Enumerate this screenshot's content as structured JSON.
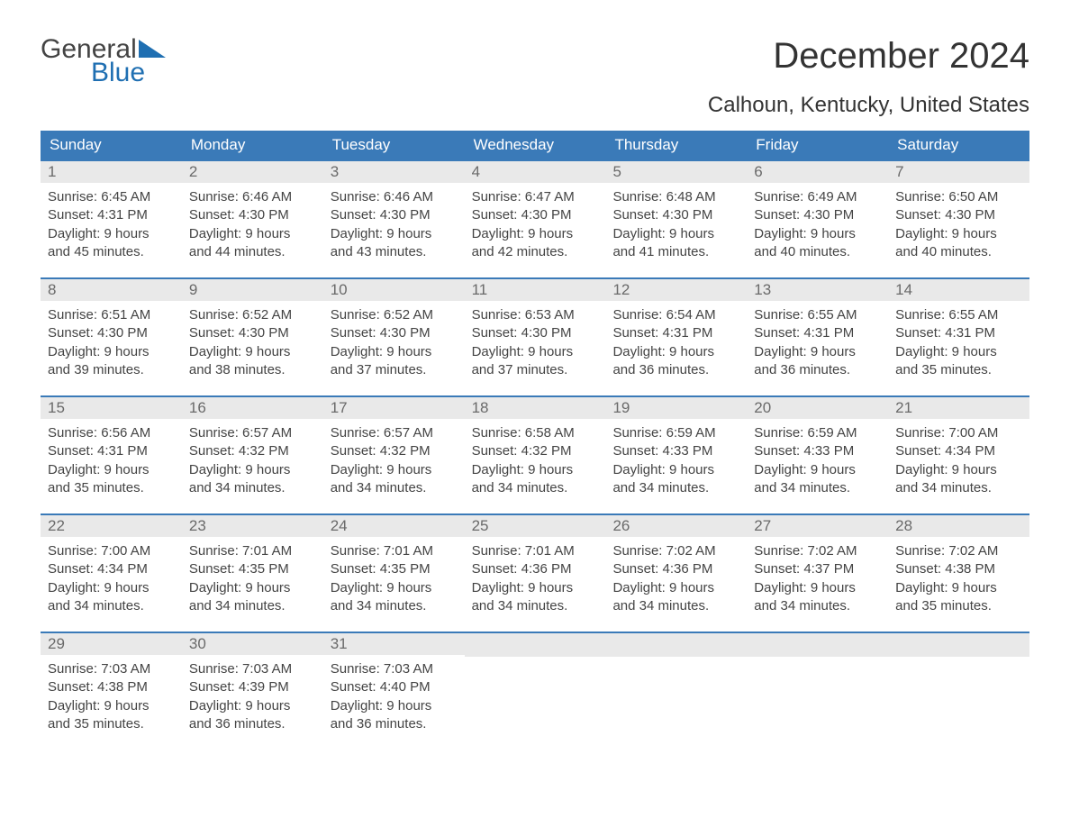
{
  "logo": {
    "top": "General",
    "bottom": "Blue"
  },
  "title": "December 2024",
  "location": "Calhoun, Kentucky, United States",
  "colors": {
    "header_bg": "#3a7ab8",
    "header_text": "#ffffff",
    "daynum_bg": "#e9e9e9",
    "daynum_text": "#6a6a6a",
    "body_text": "#444444",
    "logo_blue": "#1f6fb2"
  },
  "weekdays": [
    "Sunday",
    "Monday",
    "Tuesday",
    "Wednesday",
    "Thursday",
    "Friday",
    "Saturday"
  ],
  "weeks": [
    [
      {
        "n": "1",
        "sunrise": "6:45 AM",
        "sunset": "4:31 PM",
        "dl1": "Daylight: 9 hours",
        "dl2": "and 45 minutes."
      },
      {
        "n": "2",
        "sunrise": "6:46 AM",
        "sunset": "4:30 PM",
        "dl1": "Daylight: 9 hours",
        "dl2": "and 44 minutes."
      },
      {
        "n": "3",
        "sunrise": "6:46 AM",
        "sunset": "4:30 PM",
        "dl1": "Daylight: 9 hours",
        "dl2": "and 43 minutes."
      },
      {
        "n": "4",
        "sunrise": "6:47 AM",
        "sunset": "4:30 PM",
        "dl1": "Daylight: 9 hours",
        "dl2": "and 42 minutes."
      },
      {
        "n": "5",
        "sunrise": "6:48 AM",
        "sunset": "4:30 PM",
        "dl1": "Daylight: 9 hours",
        "dl2": "and 41 minutes."
      },
      {
        "n": "6",
        "sunrise": "6:49 AM",
        "sunset": "4:30 PM",
        "dl1": "Daylight: 9 hours",
        "dl2": "and 40 minutes."
      },
      {
        "n": "7",
        "sunrise": "6:50 AM",
        "sunset": "4:30 PM",
        "dl1": "Daylight: 9 hours",
        "dl2": "and 40 minutes."
      }
    ],
    [
      {
        "n": "8",
        "sunrise": "6:51 AM",
        "sunset": "4:30 PM",
        "dl1": "Daylight: 9 hours",
        "dl2": "and 39 minutes."
      },
      {
        "n": "9",
        "sunrise": "6:52 AM",
        "sunset": "4:30 PM",
        "dl1": "Daylight: 9 hours",
        "dl2": "and 38 minutes."
      },
      {
        "n": "10",
        "sunrise": "6:52 AM",
        "sunset": "4:30 PM",
        "dl1": "Daylight: 9 hours",
        "dl2": "and 37 minutes."
      },
      {
        "n": "11",
        "sunrise": "6:53 AM",
        "sunset": "4:30 PM",
        "dl1": "Daylight: 9 hours",
        "dl2": "and 37 minutes."
      },
      {
        "n": "12",
        "sunrise": "6:54 AM",
        "sunset": "4:31 PM",
        "dl1": "Daylight: 9 hours",
        "dl2": "and 36 minutes."
      },
      {
        "n": "13",
        "sunrise": "6:55 AM",
        "sunset": "4:31 PM",
        "dl1": "Daylight: 9 hours",
        "dl2": "and 36 minutes."
      },
      {
        "n": "14",
        "sunrise": "6:55 AM",
        "sunset": "4:31 PM",
        "dl1": "Daylight: 9 hours",
        "dl2": "and 35 minutes."
      }
    ],
    [
      {
        "n": "15",
        "sunrise": "6:56 AM",
        "sunset": "4:31 PM",
        "dl1": "Daylight: 9 hours",
        "dl2": "and 35 minutes."
      },
      {
        "n": "16",
        "sunrise": "6:57 AM",
        "sunset": "4:32 PM",
        "dl1": "Daylight: 9 hours",
        "dl2": "and 34 minutes."
      },
      {
        "n": "17",
        "sunrise": "6:57 AM",
        "sunset": "4:32 PM",
        "dl1": "Daylight: 9 hours",
        "dl2": "and 34 minutes."
      },
      {
        "n": "18",
        "sunrise": "6:58 AM",
        "sunset": "4:32 PM",
        "dl1": "Daylight: 9 hours",
        "dl2": "and 34 minutes."
      },
      {
        "n": "19",
        "sunrise": "6:59 AM",
        "sunset": "4:33 PM",
        "dl1": "Daylight: 9 hours",
        "dl2": "and 34 minutes."
      },
      {
        "n": "20",
        "sunrise": "6:59 AM",
        "sunset": "4:33 PM",
        "dl1": "Daylight: 9 hours",
        "dl2": "and 34 minutes."
      },
      {
        "n": "21",
        "sunrise": "7:00 AM",
        "sunset": "4:34 PM",
        "dl1": "Daylight: 9 hours",
        "dl2": "and 34 minutes."
      }
    ],
    [
      {
        "n": "22",
        "sunrise": "7:00 AM",
        "sunset": "4:34 PM",
        "dl1": "Daylight: 9 hours",
        "dl2": "and 34 minutes."
      },
      {
        "n": "23",
        "sunrise": "7:01 AM",
        "sunset": "4:35 PM",
        "dl1": "Daylight: 9 hours",
        "dl2": "and 34 minutes."
      },
      {
        "n": "24",
        "sunrise": "7:01 AM",
        "sunset": "4:35 PM",
        "dl1": "Daylight: 9 hours",
        "dl2": "and 34 minutes."
      },
      {
        "n": "25",
        "sunrise": "7:01 AM",
        "sunset": "4:36 PM",
        "dl1": "Daylight: 9 hours",
        "dl2": "and 34 minutes."
      },
      {
        "n": "26",
        "sunrise": "7:02 AM",
        "sunset": "4:36 PM",
        "dl1": "Daylight: 9 hours",
        "dl2": "and 34 minutes."
      },
      {
        "n": "27",
        "sunrise": "7:02 AM",
        "sunset": "4:37 PM",
        "dl1": "Daylight: 9 hours",
        "dl2": "and 34 minutes."
      },
      {
        "n": "28",
        "sunrise": "7:02 AM",
        "sunset": "4:38 PM",
        "dl1": "Daylight: 9 hours",
        "dl2": "and 35 minutes."
      }
    ],
    [
      {
        "n": "29",
        "sunrise": "7:03 AM",
        "sunset": "4:38 PM",
        "dl1": "Daylight: 9 hours",
        "dl2": "and 35 minutes."
      },
      {
        "n": "30",
        "sunrise": "7:03 AM",
        "sunset": "4:39 PM",
        "dl1": "Daylight: 9 hours",
        "dl2": "and 36 minutes."
      },
      {
        "n": "31",
        "sunrise": "7:03 AM",
        "sunset": "4:40 PM",
        "dl1": "Daylight: 9 hours",
        "dl2": "and 36 minutes."
      },
      {
        "empty": true
      },
      {
        "empty": true
      },
      {
        "empty": true
      },
      {
        "empty": true
      }
    ]
  ],
  "labels": {
    "sunrise_prefix": "Sunrise: ",
    "sunset_prefix": "Sunset: "
  }
}
